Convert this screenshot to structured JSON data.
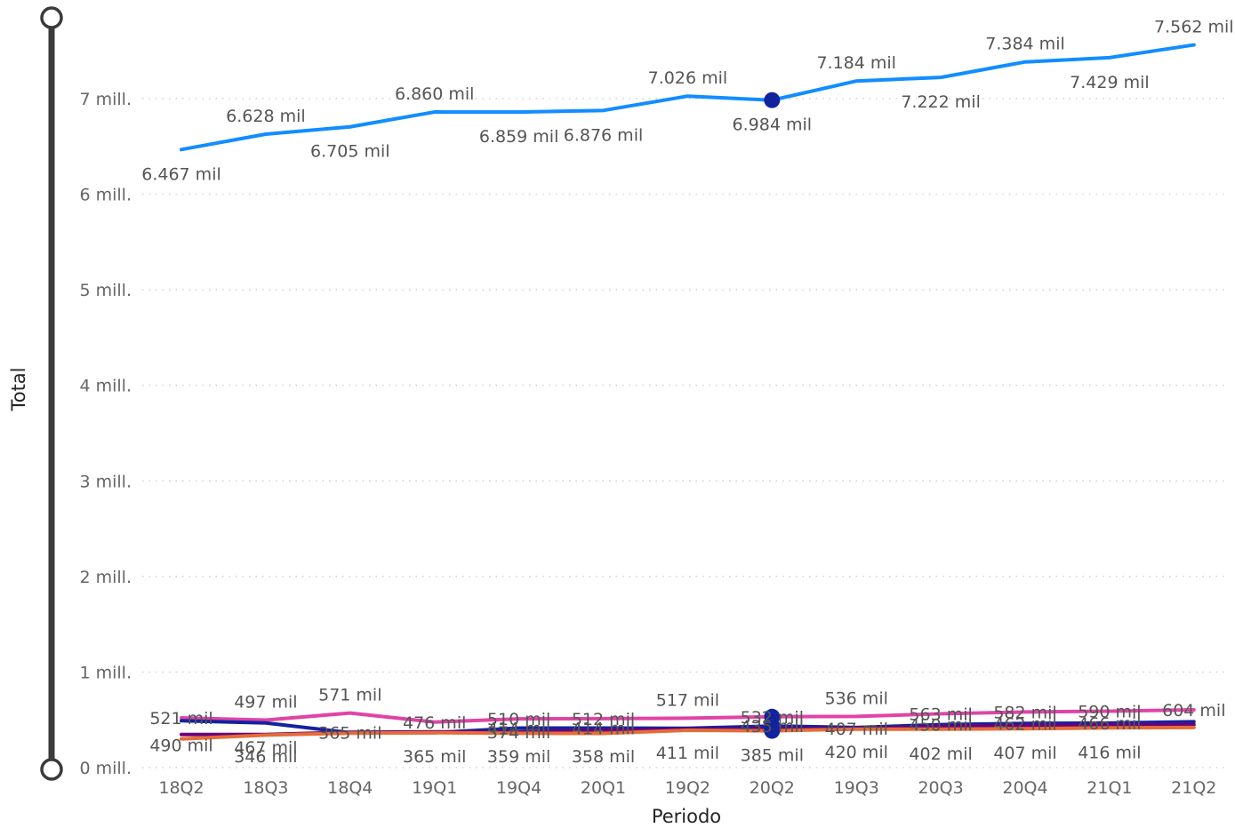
{
  "chart_data": {
    "type": "line",
    "xlabel": "Periodo",
    "ylabel": "Total",
    "ylim": [
      0,
      7000000
    ],
    "yticks": [
      {
        "value": 0,
        "label": "0 mill."
      },
      {
        "value": 1000000,
        "label": "1 mill."
      },
      {
        "value": 2000000,
        "label": "2 mill."
      },
      {
        "value": 3000000,
        "label": "3 mill."
      },
      {
        "value": 4000000,
        "label": "4 mill."
      },
      {
        "value": 5000000,
        "label": "5 mill."
      },
      {
        "value": 6000000,
        "label": "6 mill."
      },
      {
        "value": 7000000,
        "label": "7 mill."
      }
    ],
    "categories": [
      "18Q2",
      "18Q3",
      "18Q4",
      "19Q1",
      "19Q4",
      "20Q1",
      "19Q2",
      "20Q2",
      "19Q3",
      "20Q3",
      "20Q4",
      "21Q1",
      "21Q2"
    ],
    "grid": true,
    "highlight_category": "20Q2",
    "series": [
      {
        "color": "#118DFF",
        "values": [
          6467000,
          6628000,
          6705000,
          6860000,
          6859000,
          6876000,
          7026000,
          6984000,
          7184000,
          7222000,
          7384000,
          7429000,
          7562000
        ],
        "labels": [
          "6.467 mil",
          "6.628 mil",
          "6.705 mil",
          "6.860 mil",
          "6.859 mil",
          "6.876 mil",
          "7.026 mil",
          "6.984 mil",
          "7.184 mil",
          "7.222 mil",
          "7.384 mil",
          "7.429 mil",
          "7.562 mil"
        ],
        "label_pos": [
          "below",
          "above",
          "below",
          "above",
          "below",
          "below",
          "above",
          "below",
          "above",
          "below",
          "above",
          "below",
          "above"
        ]
      },
      {
        "color": "#E044A7",
        "values": [
          521000,
          497000,
          571000,
          476000,
          510000,
          512000,
          517000,
          532000,
          536000,
          563000,
          582000,
          590000,
          604000
        ],
        "labels": [
          "521 mil",
          "497 mil",
          "571 mil",
          "476 mil",
          "510 mil",
          "512 mil",
          "517 mil",
          "532 mil",
          "536 mil",
          "563 mil",
          "582 mil",
          "590 mil",
          "604 mil"
        ],
        "label_pos": [
          "ontop",
          "above",
          "above",
          "ontop",
          "ontop",
          "ontop",
          "above",
          "ontop",
          "above",
          "ontop",
          "ontop",
          "ontop",
          "ontop"
        ]
      },
      {
        "color": "#12239E",
        "values": [
          490000,
          467000,
          365000,
          365000,
          414000,
          414000,
          411000,
          435000,
          420000,
          450000,
          462000,
          466000,
          480000
        ],
        "labels": [
          "490 mil",
          "467 mil",
          "365 mil",
          "365 mil",
          "414 mil",
          "414 mil",
          "411 mil",
          "435 mil",
          "420 mil",
          "450 mil",
          "462 mil",
          "466 mil",
          ""
        ],
        "label_pos": [
          "below",
          "below",
          "ontop",
          "below",
          "ontop",
          "ontop",
          "below",
          "ontop",
          "below",
          "ontop",
          "ontop",
          "ontop",
          "none"
        ]
      },
      {
        "color": "#6B007B",
        "values": [
          346000,
          346000,
          370000,
          374000,
          374000,
          390000,
          400000,
          407000,
          407000,
          430000,
          440000,
          445000,
          450000
        ],
        "labels": [
          "",
          "346 mil",
          "",
          "",
          "374 mil",
          "",
          "",
          "",
          "407 mil",
          "",
          "",
          "",
          ""
        ],
        "label_pos": [
          "none",
          "below",
          "none",
          "none",
          "ontop",
          "none",
          "none",
          "none",
          "ontop",
          "none",
          "none",
          "none",
          "none"
        ]
      },
      {
        "color": "#E66C37",
        "values": [
          300000,
          340000,
          360000,
          365000,
          359000,
          358000,
          390000,
          385000,
          402000,
          402000,
          407000,
          416000,
          420000
        ],
        "labels": [
          "",
          "",
          "",
          "",
          "359 mil",
          "358 mil",
          "",
          "385 mil",
          "",
          "402 mil",
          "407 mil",
          "416 mil",
          ""
        ],
        "label_pos": [
          "none",
          "none",
          "none",
          "none",
          "below",
          "below",
          "none",
          "below",
          "none",
          "below",
          "below",
          "below",
          "none"
        ]
      }
    ]
  }
}
